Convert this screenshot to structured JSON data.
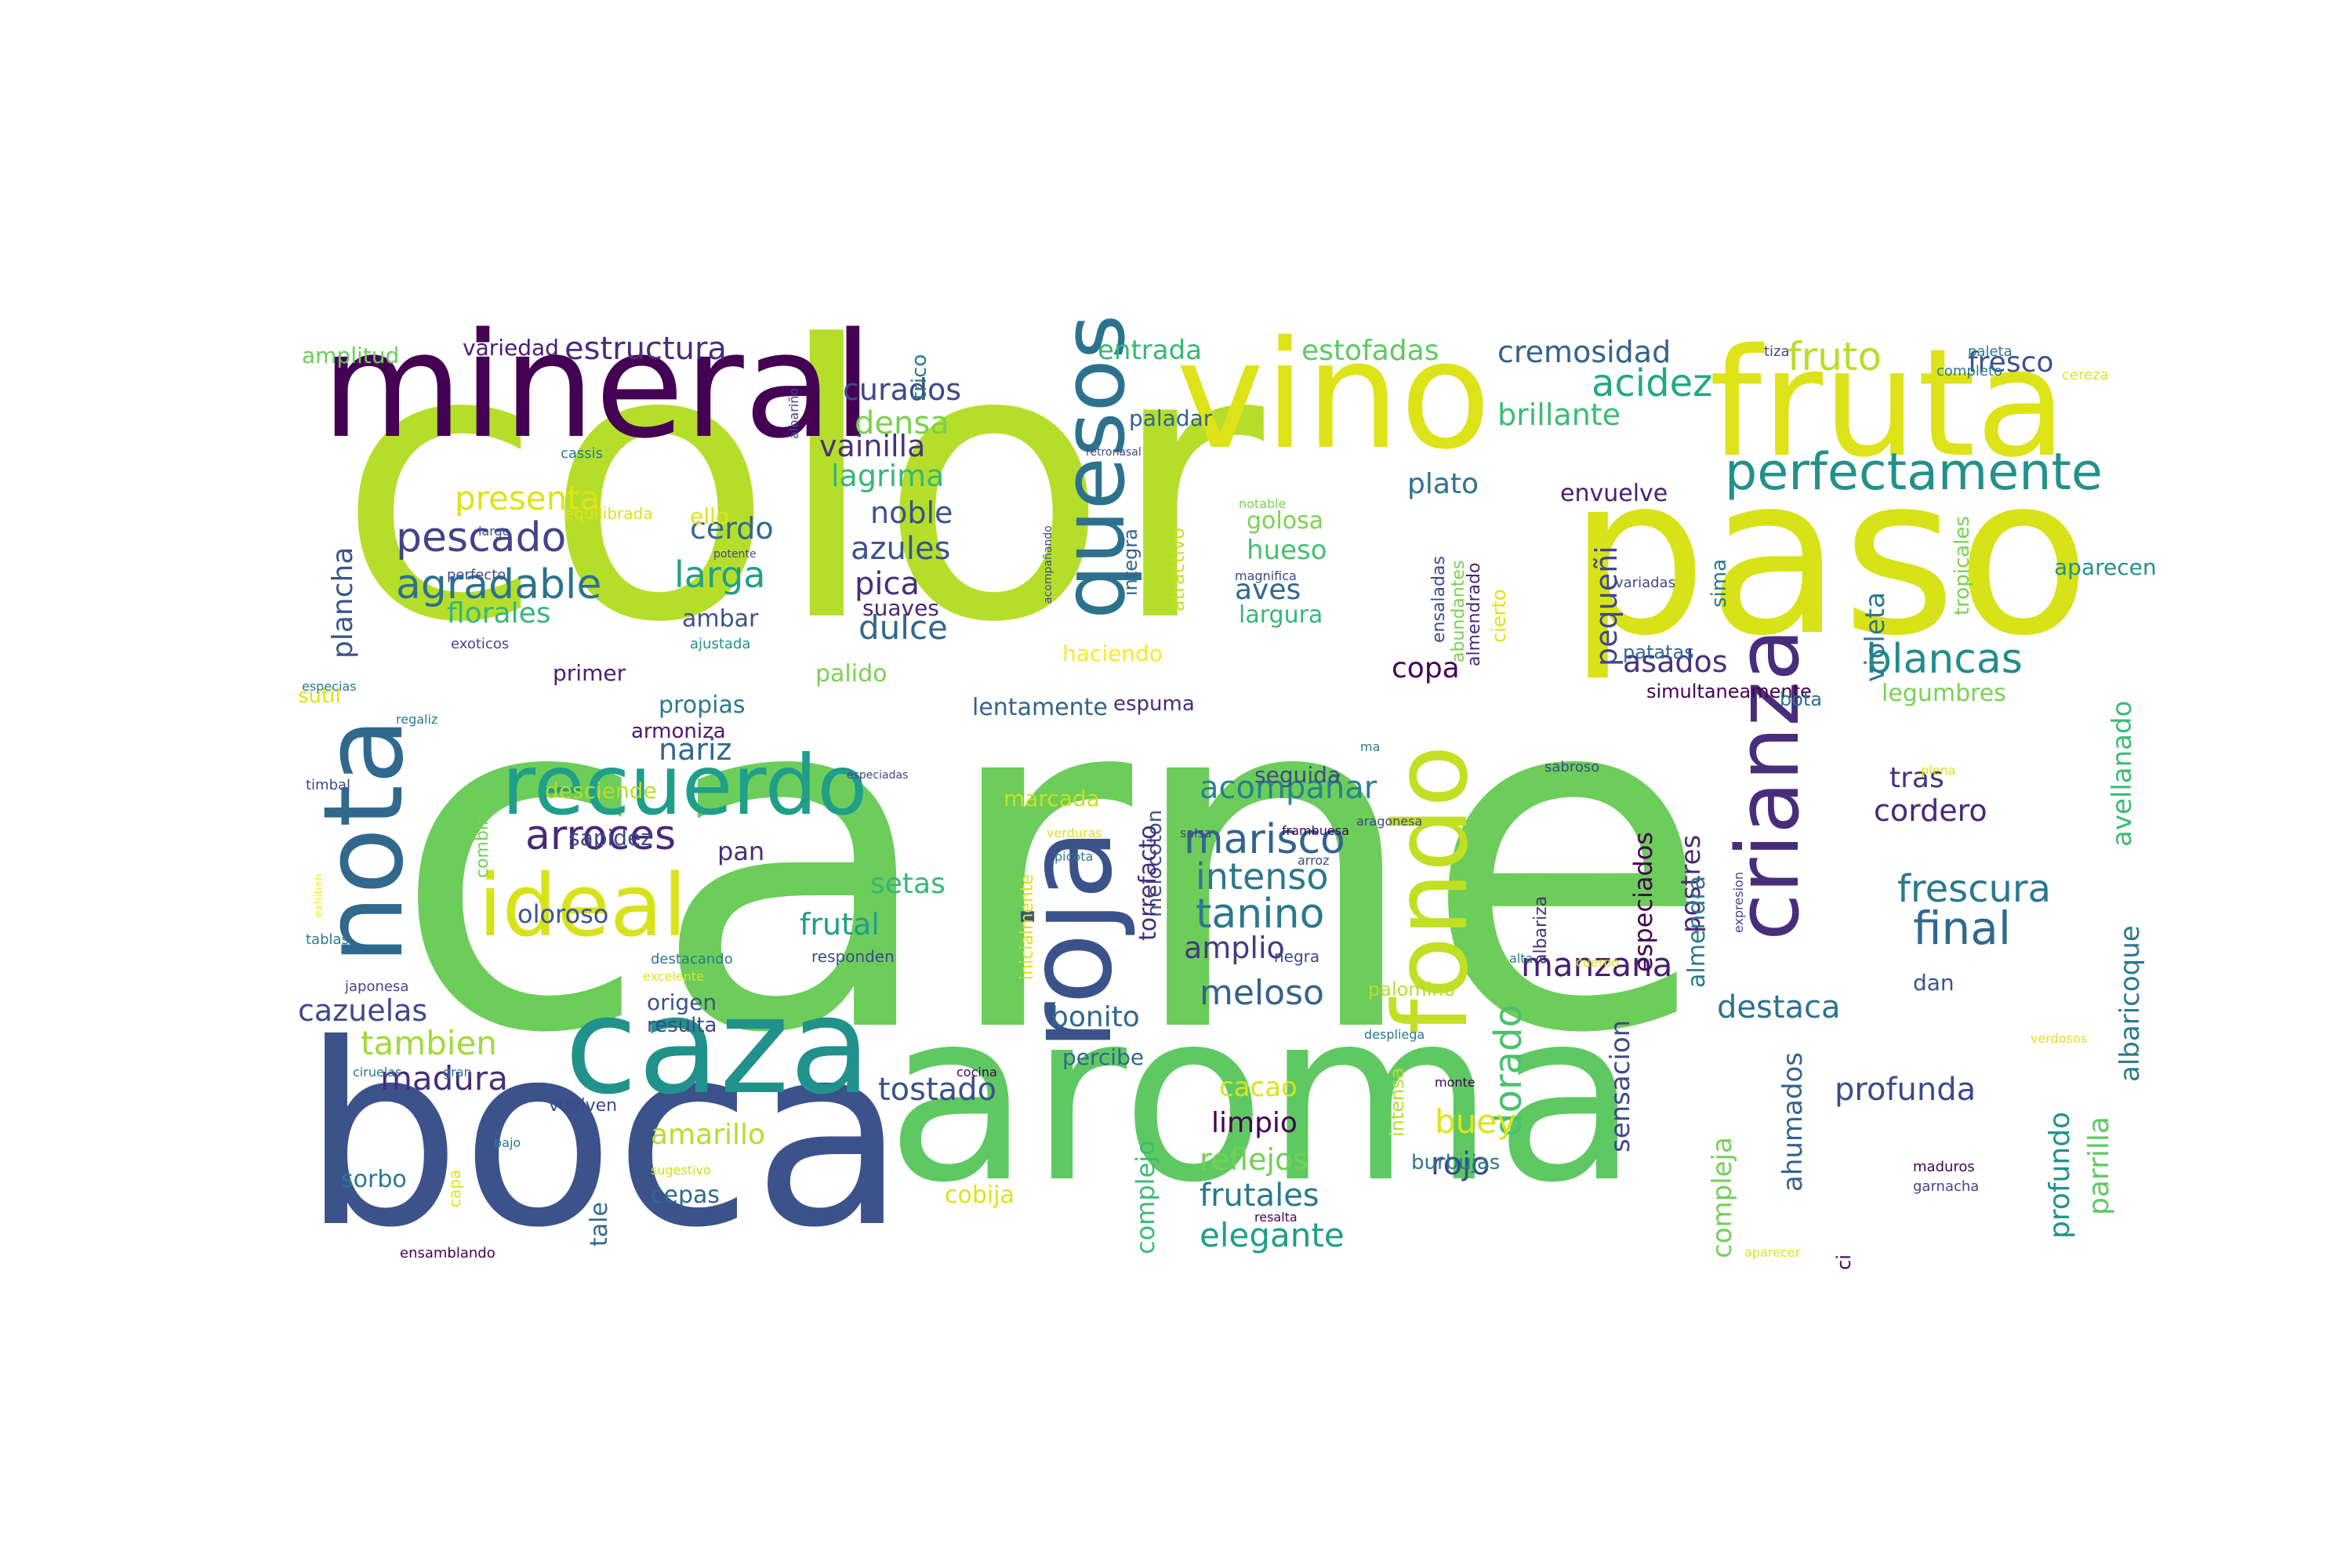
{
  "words": [
    {
      "text": "carne",
      "color": "#6ccd5a"
    },
    {
      "text": "color",
      "color": "#b5de2b"
    },
    {
      "text": "aroma",
      "color": "#5ec962"
    },
    {
      "text": "boca",
      "color": "#3b528b"
    },
    {
      "text": "paso",
      "color": "#d8e219"
    },
    {
      "text": "mineral",
      "color": "#440154"
    },
    {
      "text": "vino",
      "color": "#dde318"
    },
    {
      "text": "fruta",
      "color": "#dde318"
    },
    {
      "text": "caza",
      "color": "#21918c"
    },
    {
      "text": "recuerdo",
      "color": "#1f9e89"
    },
    {
      "text": "nota",
      "color": "#31688e"
    },
    {
      "text": "roja",
      "color": "#3b528b"
    },
    {
      "text": "quesos",
      "color": "#2c728e"
    },
    {
      "text": "fondo",
      "color": "#c2df23"
    },
    {
      "text": "crianza",
      "color": "#472d7b"
    },
    {
      "text": "ideal",
      "color": "#d8e219"
    },
    {
      "text": "perfectamente",
      "color": "#21918c"
    },
    {
      "text": "pescado",
      "color": "#414487"
    },
    {
      "text": "estructura",
      "color": "#472d7b"
    },
    {
      "text": "arroces",
      "color": "#482878"
    },
    {
      "text": "agradable",
      "color": "#2c728e"
    },
    {
      "text": "blancas",
      "color": "#228c8d"
    },
    {
      "text": "marisco",
      "color": "#33638d"
    },
    {
      "text": "frescura",
      "color": "#2a788e"
    },
    {
      "text": "final",
      "color": "#31688e"
    },
    {
      "text": "tanino",
      "color": "#2a788e"
    },
    {
      "text": "larga",
      "color": "#1fa187"
    },
    {
      "text": "acidez",
      "color": "#22a884"
    },
    {
      "text": "fruto",
      "color": "#b5de2b"
    },
    {
      "text": "presenta",
      "color": "#dde318"
    },
    {
      "text": "cremosidad",
      "color": "#33638d"
    },
    {
      "text": "brillante",
      "color": "#3bbb75"
    },
    {
      "text": "curados",
      "color": "#3e4989"
    },
    {
      "text": "lagrima",
      "color": "#35b779"
    },
    {
      "text": "vainilla",
      "color": "#46327e"
    },
    {
      "text": "densa",
      "color": "#7ad151"
    },
    {
      "text": "cerdo",
      "color": "#31688e"
    },
    {
      "text": "noble",
      "color": "#3b528b"
    },
    {
      "text": "azules",
      "color": "#39568c"
    },
    {
      "text": "pica",
      "color": "#472d7b"
    },
    {
      "text": "dulce",
      "color": "#31688e"
    },
    {
      "text": "florales",
      "color": "#35b779"
    },
    {
      "text": "intenso",
      "color": "#2a788e"
    },
    {
      "text": "meloso",
      "color": "#33638d"
    },
    {
      "text": "amplio",
      "color": "#443a83"
    },
    {
      "text": "acompañar",
      "color": "#26828e"
    },
    {
      "text": "nariz",
      "color": "#31688e"
    },
    {
      "text": "tambien",
      "color": "#a0da39"
    },
    {
      "text": "madura",
      "color": "#472d7b"
    },
    {
      "text": "cazuelas",
      "color": "#3e4989"
    },
    {
      "text": "amarillo",
      "color": "#b5de2b"
    },
    {
      "text": "tostado",
      "color": "#3b528b"
    },
    {
      "text": "setas",
      "color": "#35b779"
    },
    {
      "text": "frutal",
      "color": "#1f9e89"
    },
    {
      "text": "manzana",
      "color": "#481f70"
    },
    {
      "text": "destaca",
      "color": "#2c728e"
    },
    {
      "text": "profunda",
      "color": "#3e4989"
    },
    {
      "text": "cordero",
      "color": "#482878"
    },
    {
      "text": "tras",
      "color": "#46327e"
    },
    {
      "text": "asados",
      "color": "#46327e"
    },
    {
      "text": "dorado",
      "color": "#4ac16d"
    },
    {
      "text": "elegante",
      "color": "#1f9e89"
    },
    {
      "text": "frutales",
      "color": "#2a788e"
    },
    {
      "text": "reflejos",
      "color": "#73d056"
    },
    {
      "text": "limpio",
      "color": "#440154"
    },
    {
      "text": "cacao",
      "color": "#dde318"
    },
    {
      "text": "buey",
      "color": "#dde318"
    },
    {
      "text": "rojo",
      "color": "#3e4989"
    },
    {
      "text": "copa",
      "color": "#440154"
    },
    {
      "text": "plato",
      "color": "#2c728e"
    },
    {
      "text": "hueso",
      "color": "#46c06f"
    },
    {
      "text": "aves",
      "color": "#31688e"
    },
    {
      "text": "largura",
      "color": "#35b779"
    },
    {
      "text": "golosa",
      "color": "#7ad151"
    },
    {
      "text": "bonito",
      "color": "#31688e"
    },
    {
      "text": "entrada",
      "color": "#35b779"
    },
    {
      "text": "estofadas",
      "color": "#5ec962"
    },
    {
      "text": "fresco",
      "color": "#3b528b"
    },
    {
      "text": "envuelve",
      "color": "#482173"
    },
    {
      "text": "oloroso",
      "color": "#39568c"
    },
    {
      "text": "sapidez",
      "color": "#3e4989"
    },
    {
      "text": "pan",
      "color": "#472d7b"
    },
    {
      "text": "desciende",
      "color": "#b5de2b"
    },
    {
      "text": "armoniza",
      "color": "#48186a"
    },
    {
      "text": "propias",
      "color": "#2a788e"
    },
    {
      "text": "palido",
      "color": "#7ad151"
    },
    {
      "text": "lentamente",
      "color": "#33638d"
    },
    {
      "text": "primer",
      "color": "#481f70"
    },
    {
      "text": "plancha",
      "color": "#39568c"
    },
    {
      "text": "amplitud",
      "color": "#6ccd5a"
    },
    {
      "text": "variedad",
      "color": "#481f70"
    },
    {
      "text": "ambar",
      "color": "#3b528b"
    },
    {
      "text": "suaves",
      "color": "#482878"
    },
    {
      "text": "haciendo",
      "color": "#fde725"
    },
    {
      "text": "marcada",
      "color": "#c8e020"
    },
    {
      "text": "seguida",
      "color": "#3e4989"
    },
    {
      "text": "espuma",
      "color": "#472d7b"
    },
    {
      "text": "percibe",
      "color": "#31688e"
    },
    {
      "text": "origen",
      "color": "#3b528b"
    },
    {
      "text": "resulta",
      "color": "#3e4989"
    },
    {
      "text": "cepas",
      "color": "#31688e"
    },
    {
      "text": "cobija",
      "color": "#dde318"
    },
    {
      "text": "sorbo",
      "color": "#2a788e"
    },
    {
      "text": "tale",
      "color": "#31688e"
    },
    {
      "text": "sutil",
      "color": "#dde318"
    },
    {
      "text": "pequeñi",
      "color": "#3e4989"
    },
    {
      "text": "violeta",
      "color": "#2a788e"
    },
    {
      "text": "legumbres",
      "color": "#7ad151"
    },
    {
      "text": "avellanado",
      "color": "#3bbb75"
    },
    {
      "text": "albaricoque",
      "color": "#2a788e"
    },
    {
      "text": "parrilla",
      "color": "#5ec962"
    },
    {
      "text": "profundo",
      "color": "#21918c"
    },
    {
      "text": "ahumados",
      "color": "#33638d"
    },
    {
      "text": "compleja",
      "color": "#73d056"
    },
    {
      "text": "sensacion",
      "color": "#3e4989"
    },
    {
      "text": "especiados",
      "color": "#440154"
    },
    {
      "text": "postres",
      "color": "#482878"
    },
    {
      "text": "almendra",
      "color": "#2a788e"
    },
    {
      "text": "complejo",
      "color": "#3bbb75"
    },
    {
      "text": "melocoton",
      "color": "#3b528b"
    },
    {
      "text": "torrefacto",
      "color": "#472d7b"
    },
    {
      "text": "paladar",
      "color": "#33638d"
    },
    {
      "text": "dan",
      "color": "#3b528b"
    },
    {
      "text": "aparecen",
      "color": "#21918c"
    },
    {
      "text": "sima",
      "color": "#2a788e"
    },
    {
      "text": "tropicales",
      "color": "#7ad151"
    },
    {
      "text": "patatas",
      "color": "#31688e"
    },
    {
      "text": "simultaneamente",
      "color": "#440154"
    },
    {
      "text": "bota",
      "color": "#2c728e"
    },
    {
      "text": "ello",
      "color": "#dde318"
    },
    {
      "text": "trico",
      "color": "#2a788e"
    },
    {
      "text": "ci",
      "color": "#440154"
    },
    {
      "text": "burbujas",
      "color": "#2a788e"
    },
    {
      "text": "intensa",
      "color": "#b5de2b"
    },
    {
      "text": "palomino",
      "color": "#b5de2b"
    },
    {
      "text": "cierto",
      "color": "#dde318"
    },
    {
      "text": "almendrado",
      "color": "#482878"
    },
    {
      "text": "abundantes",
      "color": "#7ad151"
    },
    {
      "text": "ensaladas",
      "color": "#3e4989"
    },
    {
      "text": "albariza",
      "color": "#46327e"
    },
    {
      "text": "integra",
      "color": "#33638d"
    },
    {
      "text": "atractivo",
      "color": "#c8e020"
    },
    {
      "text": "inicialmente",
      "color": "#dde318"
    },
    {
      "text": "completo",
      "color": "#2a788e"
    },
    {
      "text": "tiza",
      "color": "#3e4989"
    },
    {
      "text": "paleta",
      "color": "#2a788e"
    },
    {
      "text": "cereza",
      "color": "#dde318"
    },
    {
      "text": "albariño",
      "color": "#3e4989"
    },
    {
      "text": "cassis",
      "color": "#2a788e"
    },
    {
      "text": "equilibrada",
      "color": "#dde318"
    },
    {
      "text": "largo",
      "color": "#3b528b"
    },
    {
      "text": "potente",
      "color": "#3e4989"
    },
    {
      "text": "perfecto",
      "color": "#3e4989"
    },
    {
      "text": "exoticos",
      "color": "#3e4989"
    },
    {
      "text": "ajustada",
      "color": "#21918c"
    },
    {
      "text": "especias",
      "color": "#2a788e"
    },
    {
      "text": "regaliz",
      "color": "#2a788e"
    },
    {
      "text": "timbal",
      "color": "#3e4989"
    },
    {
      "text": "especiadas",
      "color": "#3e4989"
    },
    {
      "text": "combinan",
      "color": "#73d056"
    },
    {
      "text": "exhiben",
      "color": "#fde725"
    },
    {
      "text": "tablas",
      "color": "#2a788e"
    },
    {
      "text": "destacando",
      "color": "#2a788e"
    },
    {
      "text": "excelente",
      "color": "#dde318"
    },
    {
      "text": "responden",
      "color": "#3e4989"
    },
    {
      "text": "japonesa",
      "color": "#3e4989"
    },
    {
      "text": "ciruelas",
      "color": "#2a788e"
    },
    {
      "text": "gran",
      "color": "#2a788e"
    },
    {
      "text": "vuelven",
      "color": "#3e4989"
    },
    {
      "text": "cocina",
      "color": "#440154"
    },
    {
      "text": "bajo",
      "color": "#2a788e"
    },
    {
      "text": "capa",
      "color": "#dde318"
    },
    {
      "text": "sugestivo",
      "color": "#c8e020"
    },
    {
      "text": "ensamblando",
      "color": "#440154"
    },
    {
      "text": "notable",
      "color": "#7ad151"
    },
    {
      "text": "magnifica",
      "color": "#3e4989"
    },
    {
      "text": "acompañando",
      "color": "#3e4989"
    },
    {
      "text": "retronasal",
      "color": "#3e4989"
    },
    {
      "text": "ma",
      "color": "#2a788e"
    },
    {
      "text": "sabroso",
      "color": "#3e4989"
    },
    {
      "text": "aragonesa",
      "color": "#3e4989"
    },
    {
      "text": "frambuesa",
      "color": "#440154"
    },
    {
      "text": "salsa",
      "color": "#3e4989"
    },
    {
      "text": "verduras",
      "color": "#dde318"
    },
    {
      "text": "picota",
      "color": "#2a788e"
    },
    {
      "text": "arroz",
      "color": "#3e4989"
    },
    {
      "text": "negra",
      "color": "#3e4989"
    },
    {
      "text": "despliega",
      "color": "#2a788e"
    },
    {
      "text": "monte",
      "color": "#440154"
    },
    {
      "text": "cuerpo",
      "color": "#dde318"
    },
    {
      "text": "alta",
      "color": "#2a788e"
    },
    {
      "text": "expresion",
      "color": "#3e4989"
    },
    {
      "text": "variadas",
      "color": "#3e4989"
    },
    {
      "text": "plena",
      "color": "#dde318"
    },
    {
      "text": "verdosos",
      "color": "#dde318"
    },
    {
      "text": "maduros",
      "color": "#440154"
    },
    {
      "text": "garnacha",
      "color": "#3e4989"
    },
    {
      "text": "resalta",
      "color": "#440154"
    },
    {
      "text": "aparecer",
      "color": "#dde318"
    },
    {
      "text": "tido",
      "color": "#440154"
    }
  ]
}
